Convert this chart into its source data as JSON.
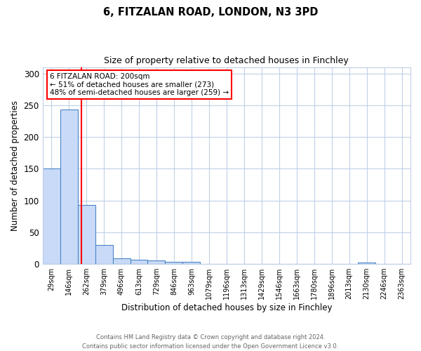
{
  "title1": "6, FITZALAN ROAD, LONDON, N3 3PD",
  "title2": "Size of property relative to detached houses in Finchley",
  "xlabel": "Distribution of detached houses by size in Finchley",
  "ylabel": "Number of detached properties",
  "categories": [
    "29sqm",
    "146sqm",
    "262sqm",
    "379sqm",
    "496sqm",
    "613sqm",
    "729sqm",
    "846sqm",
    "963sqm",
    "1079sqm",
    "1196sqm",
    "1313sqm",
    "1429sqm",
    "1546sqm",
    "1663sqm",
    "1780sqm",
    "1896sqm",
    "2013sqm",
    "2130sqm",
    "2246sqm",
    "2363sqm"
  ],
  "values": [
    150,
    243,
    93,
    30,
    9,
    7,
    6,
    3,
    3,
    0,
    0,
    0,
    0,
    0,
    0,
    0,
    0,
    0,
    2,
    0,
    0
  ],
  "bar_color": "#c9daf8",
  "bar_edge_color": "#4a86c8",
  "red_line_x": 1.72,
  "annotation_text": "6 FITZALAN ROAD: 200sqm\n← 51% of detached houses are smaller (273)\n48% of semi-detached houses are larger (259) →",
  "ylim": [
    0,
    310
  ],
  "yticks": [
    0,
    50,
    100,
    150,
    200,
    250,
    300
  ],
  "footer": "Contains HM Land Registry data © Crown copyright and database right 2024.\nContains public sector information licensed under the Open Government Licence v3.0.",
  "background_color": "#ffffff",
  "grid_color": "#c0d0e8"
}
